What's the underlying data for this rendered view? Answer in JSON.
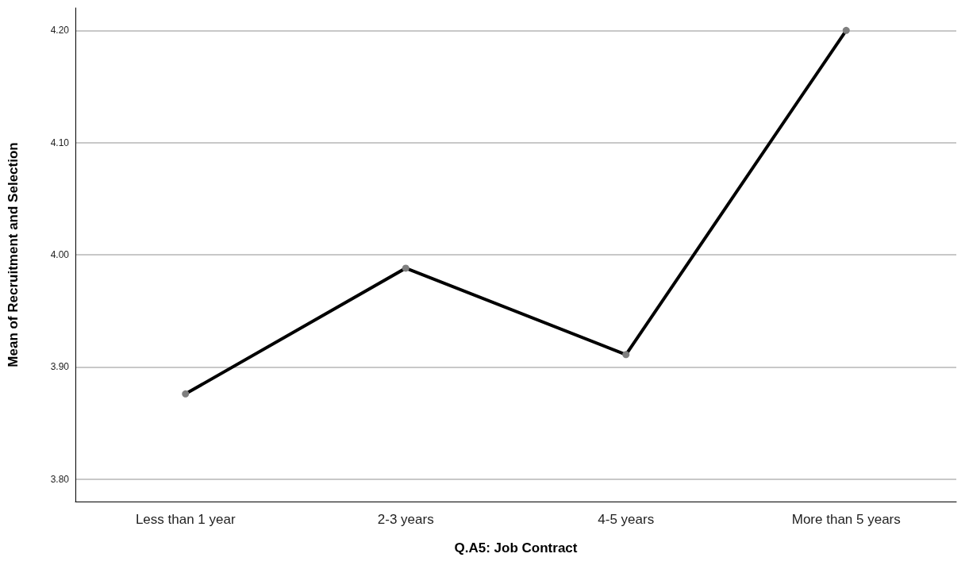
{
  "chart_data": {
    "type": "line",
    "xlabel": "Q.A5: Job Contract",
    "ylabel": "Mean of Recruitment and Selection",
    "categories": [
      "Less than 1 year",
      "2-3 years",
      "4-5 years",
      "More than 5 years"
    ],
    "series": [
      {
        "color": "#000000",
        "values": [
          3.876,
          3.988,
          3.911,
          4.2
        ]
      }
    ],
    "ylim": [
      3.78,
      4.22
    ],
    "yticks": [
      {
        "value": 3.8,
        "label": "3.80"
      },
      {
        "value": 3.9,
        "label": "3.90"
      },
      {
        "value": 4.0,
        "label": "4.00"
      },
      {
        "value": 4.1,
        "label": "4.10"
      },
      {
        "value": 4.2,
        "label": "4.20"
      }
    ],
    "grid": "y",
    "marker": "circle",
    "line_style": "solid"
  }
}
